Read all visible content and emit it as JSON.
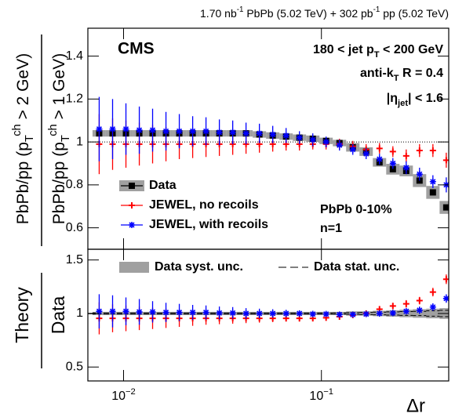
{
  "chart_data": [
    {
      "type": "errorbar",
      "title": [
        {
          "text": "1.70 nb"
        },
        {
          "text": "-1",
          "shift": "sup"
        },
        {
          "text": " PbPb (5.02 TeV) + 302 pb"
        },
        {
          "text": "-1",
          "shift": "sup"
        },
        {
          "text": " pp (5.02 TeV)"
        }
      ],
      "ylabel": [
        [
          {
            "text": "PbPb/pp (p"
          },
          {
            "text": "T",
            "shift": "sub"
          },
          {
            "text": "ch",
            "shift": "sup"
          },
          {
            "text": " > 2 GeV)"
          }
        ],
        [
          {
            "text": "PbPb/pp (p"
          },
          {
            "text": "T",
            "shift": "sub"
          },
          {
            "text": "ch",
            "shift": "sup"
          },
          {
            "text": " > 1 GeV)"
          }
        ]
      ],
      "annotations": {
        "cms": "CMS",
        "jet": [
          {
            "text": "180 < jet p"
          },
          {
            "text": "T",
            "shift": "sub"
          },
          {
            "text": " < 200 GeV"
          }
        ],
        "algo": [
          {
            "text": "anti-k"
          },
          {
            "text": "T",
            "shift": "sub"
          },
          {
            "text": " R = 0.4"
          }
        ],
        "eta": [
          {
            "text": "|η"
          },
          {
            "text": "jet",
            "shift": "sub"
          },
          {
            "text": "| < 1.6"
          }
        ],
        "centrality": "PbPb 0-10%",
        "order": "n=1"
      },
      "x": [
        0.00753,
        0.0088,
        0.01028,
        0.01201,
        0.01402,
        0.01638,
        0.01913,
        0.02235,
        0.0261,
        0.03049,
        0.03562,
        0.04159,
        0.04859,
        0.05675,
        0.06629,
        0.07743,
        0.09045,
        0.1056,
        0.1234,
        0.1441,
        0.1683,
        0.1966,
        0.2297,
        0.2683,
        0.3133,
        0.366,
        0.4276
      ],
      "xscale": "log",
      "xlim": [
        0.0066,
        0.44
      ],
      "xticks": [
        0.01,
        0.1
      ],
      "ylim": [
        0.5,
        1.53
      ],
      "yticks": [
        0.6,
        0.8,
        1,
        1.2,
        1.4
      ],
      "reference": 1,
      "reference_style": "dotted",
      "legend": "lower-left",
      "series": [
        {
          "name": "Data",
          "color": "#000000",
          "style": "points",
          "marker": "square",
          "syst_color": "#a0a0a0",
          "values": [
            1.04,
            1.04,
            1.04,
            1.04,
            1.04,
            1.04,
            1.04,
            1.04,
            1.04,
            1.04,
            1.04,
            1.04,
            1.035,
            1.03,
            1.025,
            1.02,
            1.015,
            1.005,
            0.995,
            0.975,
            0.955,
            0.905,
            0.873,
            0.865,
            0.82,
            0.765,
            0.695
          ],
          "syst": [
            0.015,
            0.015,
            0.015,
            0.015,
            0.015,
            0.015,
            0.015,
            0.015,
            0.015,
            0.015,
            0.015,
            0.015,
            0.015,
            0.015,
            0.015,
            0.015,
            0.015,
            0.015,
            0.015,
            0.02,
            0.02,
            0.02,
            0.025,
            0.025,
            0.03,
            0.03,
            0.03
          ]
        },
        {
          "name": "JEWEL, no recoils",
          "color": "#ff0000",
          "style": "points",
          "marker": "cross",
          "values": [
            0.99,
            0.99,
            0.99,
            0.99,
            0.99,
            0.99,
            0.99,
            0.99,
            0.99,
            0.99,
            0.99,
            0.99,
            0.99,
            0.99,
            0.99,
            0.99,
            0.99,
            0.99,
            0.99,
            0.98,
            0.965,
            0.97,
            0.955,
            0.935,
            0.96,
            0.96,
            0.915
          ],
          "errors": [
            0.14,
            0.12,
            0.11,
            0.1,
            0.09,
            0.08,
            0.07,
            0.065,
            0.06,
            0.055,
            0.05,
            0.045,
            0.04,
            0.035,
            0.03,
            0.03,
            0.025,
            0.025,
            0.025,
            0.025,
            0.025,
            0.025,
            0.025,
            0.03,
            0.03,
            0.03,
            0.035
          ]
        },
        {
          "name": "JEWEL, with recoils",
          "color": "#0000ff",
          "style": "points",
          "marker": "star",
          "values": [
            1.06,
            1.06,
            1.06,
            1.055,
            1.055,
            1.05,
            1.05,
            1.05,
            1.05,
            1.045,
            1.045,
            1.04,
            1.04,
            1.035,
            1.03,
            1.02,
            1.01,
            1.0,
            0.985,
            0.965,
            0.945,
            0.92,
            0.9,
            0.88,
            0.85,
            0.815,
            0.8
          ],
          "errors": [
            0.15,
            0.14,
            0.12,
            0.11,
            0.1,
            0.09,
            0.08,
            0.07,
            0.065,
            0.06,
            0.055,
            0.05,
            0.045,
            0.04,
            0.035,
            0.03,
            0.03,
            0.025,
            0.025,
            0.025,
            0.025,
            0.025,
            0.025,
            0.03,
            0.03,
            0.03,
            0.035
          ]
        }
      ]
    },
    {
      "type": "errorbar",
      "xlabel": "Δr",
      "ylabel": [
        "Theory",
        "Data"
      ],
      "x": [
        0.00753,
        0.0088,
        0.01028,
        0.01201,
        0.01402,
        0.01638,
        0.01913,
        0.02235,
        0.0261,
        0.03049,
        0.03562,
        0.04159,
        0.04859,
        0.05675,
        0.06629,
        0.07743,
        0.09045,
        0.1056,
        0.1234,
        0.1441,
        0.1683,
        0.1966,
        0.2297,
        0.2683,
        0.3133,
        0.366,
        0.4276
      ],
      "xscale": "log",
      "xlim": [
        0.0066,
        0.44
      ],
      "xticks": [
        {
          "value": 0.01,
          "label": [
            {
              "text": "10"
            },
            {
              "text": "−2",
              "shift": "sup"
            }
          ]
        },
        {
          "value": 0.1,
          "label": [
            {
              "text": "10"
            },
            {
              "text": "−1",
              "shift": "sup"
            }
          ]
        }
      ],
      "ylim": [
        0.37,
        1.6
      ],
      "yticks": [
        0.5,
        1,
        1.5
      ],
      "reference": 1,
      "reference_style": "solid",
      "legend": "top",
      "series": [
        {
          "name": "Data syst. unc.",
          "color": "#a0a0a0",
          "style": "band",
          "values": [
            1,
            1,
            1,
            1,
            1,
            1,
            1,
            1,
            1,
            1,
            1,
            1,
            1,
            1,
            1,
            1,
            1,
            1,
            1,
            1,
            1,
            1,
            1,
            1,
            1,
            1,
            1
          ],
          "errors": [
            0.015,
            0.015,
            0.015,
            0.015,
            0.015,
            0.015,
            0.015,
            0.015,
            0.015,
            0.015,
            0.015,
            0.015,
            0.015,
            0.015,
            0.015,
            0.015,
            0.015,
            0.015,
            0.015,
            0.02,
            0.02,
            0.025,
            0.03,
            0.035,
            0.04,
            0.045,
            0.05
          ]
        },
        {
          "name": "Data stat. unc.",
          "color": "#000000",
          "style": "dashed",
          "values": [
            1,
            1,
            1,
            1,
            1,
            1,
            1,
            1,
            1,
            1,
            1,
            1,
            1,
            1,
            1,
            1,
            1,
            1,
            1,
            1,
            1,
            1,
            1,
            1,
            1,
            1,
            1
          ],
          "errors": [
            0.005,
            0.005,
            0.005,
            0.005,
            0.005,
            0.005,
            0.005,
            0.005,
            0.005,
            0.005,
            0.005,
            0.005,
            0.005,
            0.005,
            0.005,
            0.005,
            0.005,
            0.005,
            0.006,
            0.008,
            0.01,
            0.012,
            0.015,
            0.018,
            0.02,
            0.025,
            0.03
          ]
        },
        {
          "color": "#ff0000",
          "style": "points",
          "marker": "cross",
          "values": [
            0.955,
            0.955,
            0.955,
            0.955,
            0.955,
            0.955,
            0.955,
            0.955,
            0.955,
            0.955,
            0.955,
            0.955,
            0.955,
            0.955,
            0.955,
            0.955,
            0.955,
            0.96,
            0.97,
            0.985,
            1.0,
            1.04,
            1.07,
            1.09,
            1.12,
            1.2,
            1.32
          ],
          "errors": [
            0.15,
            0.13,
            0.12,
            0.11,
            0.1,
            0.09,
            0.08,
            0.07,
            0.06,
            0.055,
            0.05,
            0.045,
            0.04,
            0.035,
            0.03,
            0.03,
            0.025,
            0.025,
            0.025,
            0.025,
            0.03,
            0.03,
            0.03,
            0.035,
            0.035,
            0.04,
            0.045
          ]
        },
        {
          "color": "#0000ff",
          "style": "points",
          "marker": "star",
          "values": [
            1.02,
            1.02,
            1.02,
            1.015,
            1.015,
            1.01,
            1.01,
            1.01,
            1.01,
            1.005,
            1.005,
            1.0,
            1.0,
            1.0,
            1.0,
            1.0,
            0.995,
            0.995,
            0.99,
            0.99,
            0.995,
            1.0,
            1.005,
            1.02,
            1.03,
            1.06,
            1.14
          ],
          "errors": [
            0.16,
            0.15,
            0.13,
            0.12,
            0.1,
            0.09,
            0.08,
            0.07,
            0.065,
            0.06,
            0.055,
            0.05,
            0.045,
            0.04,
            0.035,
            0.03,
            0.03,
            0.025,
            0.025,
            0.025,
            0.025,
            0.03,
            0.03,
            0.03,
            0.035,
            0.035,
            0.04
          ]
        }
      ]
    }
  ]
}
